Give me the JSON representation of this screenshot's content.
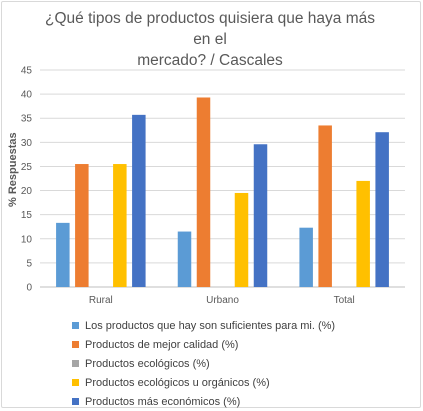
{
  "chart_data": {
    "type": "bar",
    "title": "¿Qué tipos de productos quisiera que haya más en el mercado? / Cascales",
    "title_lines": [
      "¿Qué tipos de productos quisiera que haya más en el",
      "mercado? / Cascales"
    ],
    "xlabel": "",
    "ylabel": "% Respuestas",
    "ylim": [
      0,
      45
    ],
    "yticks": [
      0,
      5,
      10,
      15,
      20,
      25,
      30,
      35,
      40,
      45
    ],
    "grid": true,
    "legend_position": "bottom",
    "categories": [
      "Rural",
      "Urbano",
      "Total"
    ],
    "series": [
      {
        "name": "Los productos que hay son suficientes para mi. (%)",
        "color": "#5b9bd5",
        "values": [
          13.3,
          11.5,
          12.3
        ]
      },
      {
        "name": "Productos de mejor calidad (%)",
        "color": "#ed7d31",
        "values": [
          25.5,
          39.3,
          33.5
        ]
      },
      {
        "name": "Productos ecológicos (%)",
        "color": "#a5a5a5",
        "values": [
          0,
          0,
          0
        ]
      },
      {
        "name": "Productos ecológicos u orgánicos (%)",
        "color": "#ffc000",
        "values": [
          25.5,
          19.5,
          22.0
        ]
      },
      {
        "name": "Productos más económicos (%)",
        "color": "#4472c4",
        "values": [
          35.7,
          29.6,
          32.1
        ]
      }
    ]
  }
}
